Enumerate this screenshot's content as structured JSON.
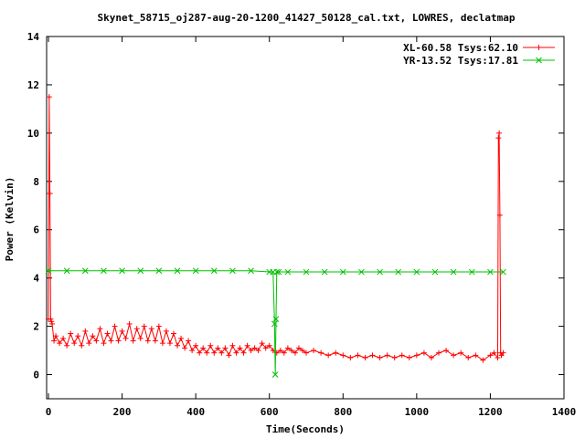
{
  "chart_data": {
    "type": "line",
    "title": "Skynet_58715_oj287-aug-20-1200_41427_50128_cal.txt, LOWRES, declatmap",
    "xlabel": "Time(Seconds)",
    "ylabel": "Power (Kelvin)",
    "xlim": [
      -5,
      1400
    ],
    "ylim": [
      -1,
      14
    ],
    "xticks": [
      0,
      200,
      400,
      600,
      800,
      1000,
      1200,
      1400
    ],
    "yticks": [
      0,
      2,
      4,
      6,
      8,
      10,
      12,
      14
    ],
    "legend_position": "top-right",
    "grid": false,
    "series": [
      {
        "name": "XL-60.58 Tsys:62.10",
        "color": "#ff0000",
        "marker": "plus",
        "x": [
          0,
          2,
          4,
          6,
          8,
          10,
          15,
          20,
          30,
          40,
          50,
          60,
          70,
          80,
          90,
          100,
          110,
          120,
          130,
          140,
          150,
          160,
          170,
          180,
          190,
          200,
          210,
          220,
          230,
          240,
          250,
          260,
          270,
          280,
          290,
          300,
          310,
          320,
          330,
          340,
          350,
          360,
          370,
          380,
          390,
          400,
          410,
          420,
          430,
          440,
          450,
          460,
          470,
          480,
          490,
          500,
          510,
          520,
          530,
          540,
          550,
          560,
          570,
          580,
          590,
          600,
          610,
          620,
          630,
          640,
          650,
          660,
          670,
          680,
          690,
          700,
          720,
          740,
          760,
          780,
          800,
          820,
          840,
          860,
          880,
          900,
          920,
          940,
          960,
          980,
          1000,
          1020,
          1040,
          1060,
          1080,
          1100,
          1120,
          1140,
          1160,
          1180,
          1200,
          1210,
          1220,
          1222,
          1224,
          1226,
          1228,
          1230,
          1235
        ],
        "y": [
          2.3,
          11.5,
          7.5,
          2.3,
          2.2,
          2.1,
          1.4,
          1.6,
          1.3,
          1.5,
          1.2,
          1.7,
          1.3,
          1.6,
          1.2,
          1.8,
          1.3,
          1.6,
          1.4,
          1.9,
          1.3,
          1.7,
          1.4,
          2.0,
          1.4,
          1.8,
          1.5,
          2.1,
          1.4,
          1.9,
          1.5,
          2.0,
          1.4,
          1.9,
          1.4,
          2.0,
          1.3,
          1.8,
          1.3,
          1.7,
          1.2,
          1.5,
          1.1,
          1.4,
          1.0,
          1.2,
          0.9,
          1.1,
          0.9,
          1.2,
          0.9,
          1.1,
          0.9,
          1.1,
          0.8,
          1.2,
          0.9,
          1.1,
          0.9,
          1.2,
          1.0,
          1.1,
          1.0,
          1.3,
          1.1,
          1.2,
          1.0,
          0.9,
          1.0,
          0.9,
          1.1,
          1.0,
          0.9,
          1.1,
          1.0,
          0.9,
          1.0,
          0.9,
          0.8,
          0.9,
          0.8,
          0.7,
          0.8,
          0.7,
          0.8,
          0.7,
          0.8,
          0.7,
          0.8,
          0.7,
          0.8,
          0.9,
          0.7,
          0.9,
          1.0,
          0.8,
          0.9,
          0.7,
          0.8,
          0.6,
          0.8,
          0.9,
          0.7,
          9.8,
          10.0,
          6.6,
          0.9,
          0.8,
          0.9
        ]
      },
      {
        "name": "YR-13.52 Tsys:17.81",
        "color": "#00c000",
        "marker": "x",
        "x": [
          0,
          50,
          100,
          150,
          200,
          250,
          300,
          350,
          400,
          450,
          500,
          550,
          600,
          610,
          614,
          616,
          618,
          620,
          625,
          650,
          700,
          750,
          800,
          850,
          900,
          950,
          1000,
          1050,
          1100,
          1150,
          1200,
          1235
        ],
        "y": [
          4.3,
          4.3,
          4.3,
          4.3,
          4.3,
          4.3,
          4.3,
          4.3,
          4.3,
          4.3,
          4.3,
          4.3,
          4.25,
          4.25,
          2.1,
          0.0,
          2.3,
          4.25,
          4.25,
          4.25,
          4.25,
          4.25,
          4.25,
          4.25,
          4.25,
          4.25,
          4.25,
          4.25,
          4.25,
          4.25,
          4.25,
          4.25
        ]
      }
    ]
  }
}
